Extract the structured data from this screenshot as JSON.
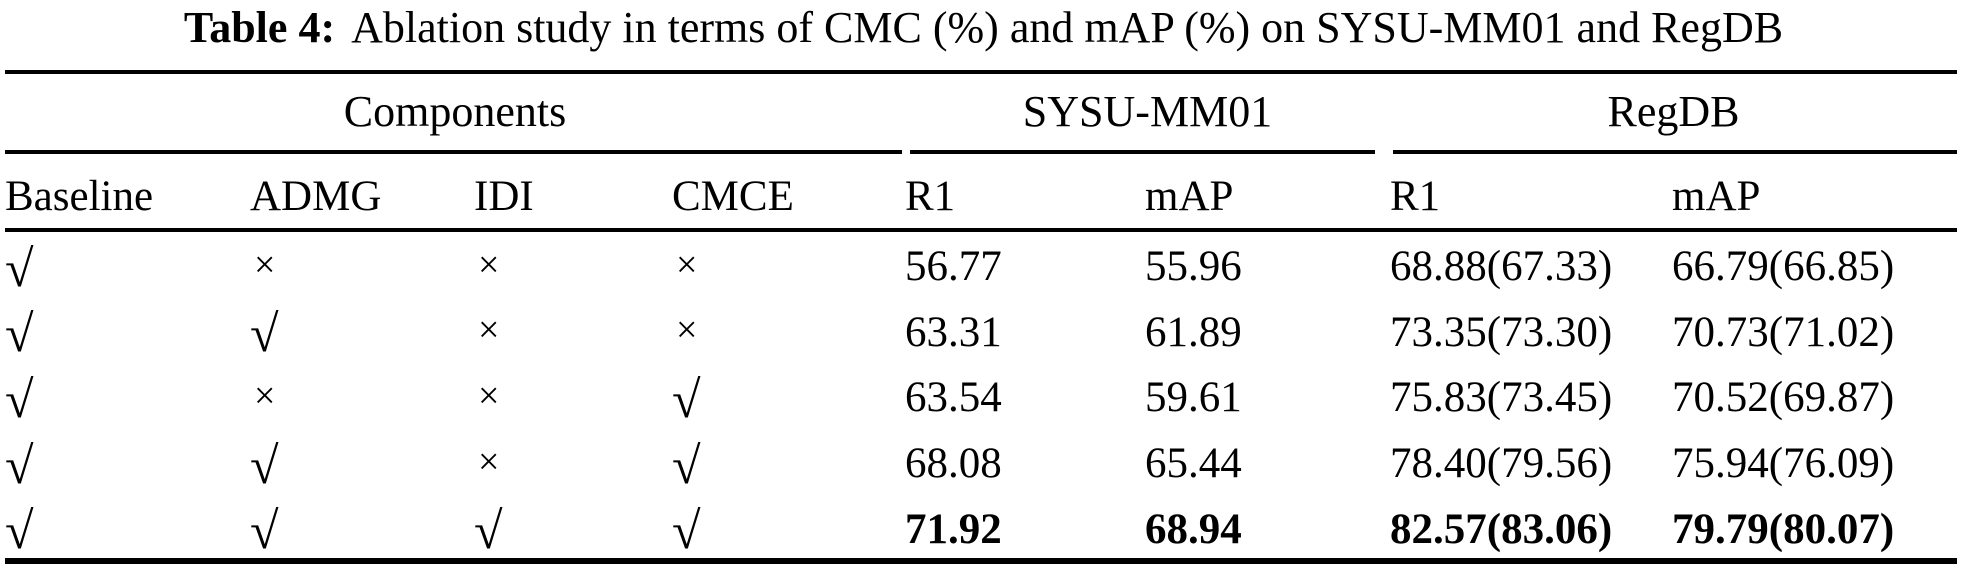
{
  "title": {
    "label": "Table 4:",
    "text": "Ablation study in terms of CMC (%) and mAP (%) on SYSU-MM01 and RegDB"
  },
  "table": {
    "groups": [
      {
        "label": "Components"
      },
      {
        "label": "SYSU-MM01"
      },
      {
        "label": "RegDB"
      }
    ],
    "columns": [
      "Baseline",
      "ADMG",
      "IDI",
      "CMCE",
      "R1",
      "mAP",
      "R1",
      "mAP"
    ],
    "mark_glyphs": {
      "check": "√",
      "cross": "×"
    },
    "rows": [
      {
        "components": [
          "check",
          "cross",
          "cross",
          "cross"
        ],
        "values": [
          "56.77",
          "55.96",
          "68.88(67.33)",
          "66.79(66.85)"
        ],
        "bold": false
      },
      {
        "components": [
          "check",
          "check",
          "cross",
          "cross"
        ],
        "values": [
          "63.31",
          "61.89",
          "73.35(73.30)",
          "70.73(71.02)"
        ],
        "bold": false
      },
      {
        "components": [
          "check",
          "cross",
          "cross",
          "check"
        ],
        "values": [
          "63.54",
          "59.61",
          "75.83(73.45)",
          "70.52(69.87)"
        ],
        "bold": false
      },
      {
        "components": [
          "check",
          "check",
          "cross",
          "check"
        ],
        "values": [
          "68.08",
          "65.44",
          "78.40(79.56)",
          "75.94(76.09)"
        ],
        "bold": false
      },
      {
        "components": [
          "check",
          "check",
          "check",
          "check"
        ],
        "values": [
          "71.92",
          "68.94",
          "82.57(83.06)",
          "79.79(80.07)"
        ],
        "bold": true
      }
    ]
  }
}
